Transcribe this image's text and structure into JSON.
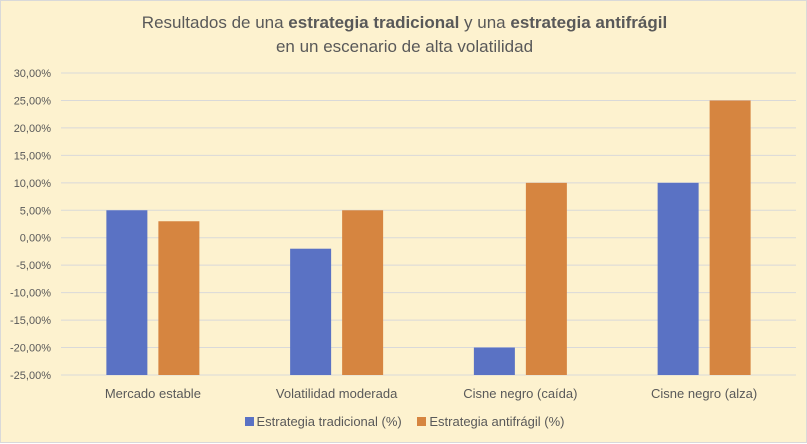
{
  "chart_data": {
    "type": "bar",
    "title_parts": [
      {
        "text": "Resultados de una ",
        "bold": false
      },
      {
        "text": "estrategia tradicional",
        "bold": true
      },
      {
        "text": " y una ",
        "bold": false
      },
      {
        "text": "estrategia antifrágil",
        "bold": true
      }
    ],
    "subtitle": "en un escenario de alta volatilidad",
    "categories": [
      "Mercado estable",
      "Volatilidad moderada",
      "Cisne negro (caída)",
      "Cisne negro (alza)"
    ],
    "series": [
      {
        "name": "Estrategia tradicional (%)",
        "color": "#5a72c4",
        "values": [
          5,
          -2,
          -20,
          10
        ]
      },
      {
        "name": "Estrategia antifrágil (%)",
        "color": "#d68540",
        "values": [
          3,
          5,
          10,
          25
        ]
      }
    ],
    "ylim": [
      -25,
      30
    ],
    "ytick_step": 5,
    "ytick_labels": [
      "30,00%",
      "25,00%",
      "20,00%",
      "15,00%",
      "10,00%",
      "5,00%",
      "0,00%",
      "-5,00%",
      "-10,00%",
      "-15,00%",
      "-20,00%",
      "-25,00%"
    ],
    "grid": true,
    "legend": "bottom",
    "xlabel": "",
    "ylabel": ""
  }
}
